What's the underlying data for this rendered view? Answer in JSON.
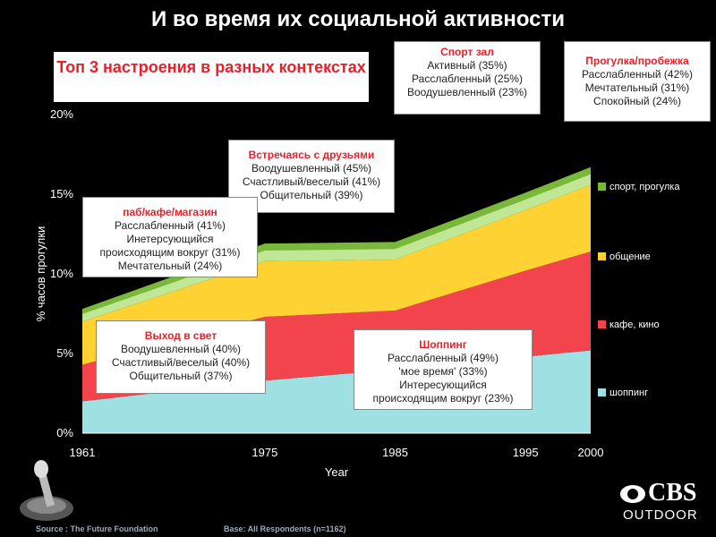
{
  "title": "И во время их социальной активности",
  "subtitle": "Топ 3 настроения в разных контекстах",
  "callouts": {
    "gym": {
      "heading": "Спорт зал",
      "lines": [
        "Активный (35%)",
        "Расслабленный (25%)",
        "Воодушевленный (23%)"
      ]
    },
    "walk": {
      "heading": "Прогулка/пробежка",
      "lines": [
        "Расслабленный (42%)",
        "Мечтательный (31%)",
        "Спокойный (24%)"
      ]
    },
    "friends": {
      "heading": "Встречаясь с друзьями",
      "lines": [
        "Воодушевленный (45%)",
        "Счастливый/веселый (41%)",
        "Общительный (39%)"
      ]
    },
    "pub": {
      "heading": "паб/кафе/магазин",
      "lines": [
        "Расслабленный (41%)",
        "Инетерсующийся",
        "происходящим вокруг (31%)",
        "Мечтательный (24%)"
      ]
    },
    "goingout": {
      "heading": "Выход в свет",
      "lines": [
        "Воодушевленный (40%)",
        "Счастливый/веселый (40%)",
        "Общительный (37%)"
      ]
    },
    "shopping": {
      "heading": "Шоппинг",
      "lines": [
        "Расслабленный (49%)",
        "'мое время' (33%)",
        "Интересующийся",
        "происходящим вокруг (23%)"
      ]
    }
  },
  "source": "Source : The Future Foundation",
  "base": "Base: All Respondents (n=1162)",
  "logo": {
    "brand": "CBS",
    "sub": "OUTDOOR"
  },
  "colors": {
    "shopping": "#9fe0e3",
    "cafe": "#f2444c",
    "social": "#ffd233",
    "sport": "#7ab83c",
    "sport_highlight": "#cdeea6"
  },
  "chart_data": {
    "type": "area",
    "stacked": true,
    "x": [
      1961,
      1975,
      1985,
      1995,
      2000
    ],
    "xlabel": "Year",
    "ylabel": "% часов прогулки",
    "ylim": [
      0,
      20
    ],
    "yticks": [
      "0%",
      "5%",
      "10%",
      "15%",
      "20%"
    ],
    "xticks": [
      "1961",
      "1975",
      "1985",
      "1995",
      "2000"
    ],
    "series": [
      {
        "name": "шоппинг",
        "values": [
          2.0,
          3.3,
          4.0,
          4.8,
          5.2
        ]
      },
      {
        "name": "кафе, кино",
        "values": [
          2.3,
          4.0,
          3.7,
          5.4,
          6.2
        ]
      },
      {
        "name": "общение",
        "values": [
          2.7,
          3.5,
          3.2,
          3.8,
          4.2
        ]
      },
      {
        "name": "спорт, прогулка",
        "values": [
          0.8,
          1.1,
          1.1,
          1.1,
          1.1
        ]
      }
    ],
    "legend_position": "right"
  }
}
